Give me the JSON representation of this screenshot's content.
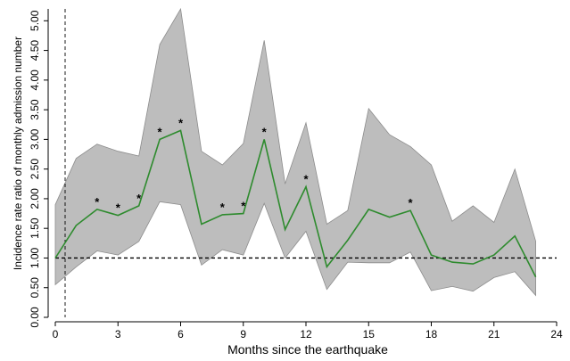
{
  "chart_data": {
    "type": "line",
    "title": "",
    "xlabel": "Months since the earthquake",
    "ylabel": "Incidence rate ratio of monthly admission number",
    "xlim": [
      0,
      24
    ],
    "ylim": [
      0,
      5.2
    ],
    "x_ticks": [
      0,
      3,
      6,
      9,
      12,
      15,
      18,
      21,
      24
    ],
    "x_tick_labels": [
      "0",
      "3",
      "6",
      "9",
      "12",
      "15",
      "18",
      "21",
      "24"
    ],
    "y_ticks": [
      0,
      0.5,
      1,
      1.5,
      2,
      2.5,
      3,
      3.5,
      4,
      4.5,
      5
    ],
    "y_tick_labels": [
      "0.00",
      "0.50",
      "1.00",
      "1.50",
      "2.00",
      "2.50",
      "3.00",
      "3.50",
      "4.00",
      "4.50",
      "5.00"
    ],
    "reference_line_y": 1.0,
    "reference_line_x": 0,
    "series": [
      {
        "x": [
          0,
          1,
          2,
          3,
          4,
          5,
          6,
          7,
          8,
          9,
          10,
          11,
          12,
          13,
          14,
          15,
          16,
          17,
          18,
          19,
          20,
          21,
          22,
          23
        ],
        "values": [
          1.0,
          1.55,
          1.82,
          1.72,
          1.88,
          3.0,
          3.15,
          1.57,
          1.73,
          1.75,
          3.0,
          1.48,
          2.2,
          0.85,
          1.3,
          1.82,
          1.69,
          1.8,
          1.05,
          0.93,
          0.9,
          1.05,
          1.37,
          0.68
        ],
        "lower": [
          0.55,
          0.85,
          1.12,
          1.05,
          1.28,
          1.95,
          1.9,
          0.88,
          1.14,
          1.05,
          1.92,
          1.0,
          1.45,
          0.47,
          0.93,
          0.92,
          0.92,
          1.1,
          0.45,
          0.52,
          0.44,
          0.67,
          0.77,
          0.37
        ],
        "upper": [
          1.9,
          2.68,
          2.92,
          2.8,
          2.72,
          4.6,
          5.2,
          2.8,
          2.57,
          2.93,
          4.67,
          2.25,
          3.28,
          1.57,
          1.8,
          3.52,
          3.08,
          2.88,
          2.57,
          1.62,
          1.88,
          1.6,
          2.5,
          1.28
        ],
        "significant": [
          false,
          false,
          true,
          true,
          true,
          true,
          true,
          false,
          true,
          true,
          true,
          false,
          true,
          false,
          false,
          false,
          false,
          true,
          false,
          false,
          false,
          false,
          false,
          false
        ]
      }
    ],
    "significance_marker": "*",
    "grid": false,
    "colors": {
      "line": "#2e8b2e",
      "band": "#bdbdbd",
      "band_edge": "#8c8c8c",
      "reference": "#000000"
    }
  }
}
